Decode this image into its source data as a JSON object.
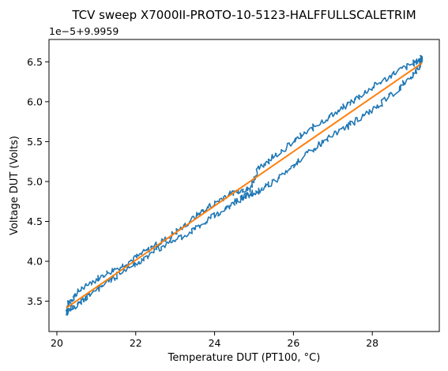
{
  "chart_data": {
    "type": "line",
    "title": "TCV sweep X7000II-PROTO-10-5123-HALFFULLSCALETRIM",
    "xlabel": "Temperature DUT (PT100, °C)",
    "ylabel": "Voltage DUT (Volts)",
    "y_offset_text": "1e−5+9.9959",
    "xlim": [
      19.8,
      29.7
    ],
    "ylim": [
      3.12,
      6.78
    ],
    "x_ticks": [
      20,
      22,
      24,
      26,
      28
    ],
    "x_tick_labels": [
      "20",
      "22",
      "24",
      "26",
      "28"
    ],
    "y_ticks": [
      3.5,
      4.0,
      4.5,
      5.0,
      5.5,
      6.0,
      6.5
    ],
    "y_tick_labels": [
      "3.5",
      "4.0",
      "4.5",
      "5.0",
      "5.5",
      "6.0",
      "6.5"
    ],
    "grid": false,
    "series": [
      {
        "color": "#1f77b4",
        "style": "noisy-hysteresis-loop",
        "x": [
          20.25,
          20.3,
          20.5,
          20.8,
          21.2,
          21.6,
          22.0,
          22.4,
          22.8,
          23.2,
          23.6,
          24.0,
          24.4,
          24.7,
          24.9,
          25.1,
          25.4,
          25.8,
          26.2,
          26.6,
          27.0,
          27.4,
          27.8,
          28.2,
          28.6,
          29.0,
          29.2,
          29.25,
          29.2,
          29.0,
          28.6,
          28.2,
          27.8,
          27.4,
          27.0,
          26.6,
          26.2,
          25.8,
          25.4,
          25.1,
          24.9,
          24.7,
          24.4,
          24.0,
          23.6,
          23.2,
          22.8,
          22.4,
          22.0,
          21.6,
          21.2,
          20.8,
          20.5,
          20.3,
          20.25
        ],
        "y": [
          3.35,
          3.48,
          3.6,
          3.72,
          3.83,
          3.93,
          4.05,
          4.17,
          4.29,
          4.43,
          4.6,
          4.73,
          4.85,
          4.9,
          4.9,
          5.15,
          5.28,
          5.42,
          5.57,
          5.71,
          5.84,
          5.97,
          6.11,
          6.24,
          6.37,
          6.47,
          6.52,
          6.55,
          6.45,
          6.32,
          6.13,
          5.97,
          5.83,
          5.7,
          5.58,
          5.44,
          5.28,
          5.1,
          4.97,
          4.88,
          4.84,
          4.8,
          4.7,
          4.57,
          4.44,
          4.31,
          4.22,
          4.1,
          3.97,
          3.85,
          3.7,
          3.57,
          3.45,
          3.38,
          3.35
        ]
      },
      {
        "color": "#ff7f0e",
        "style": "straight-fit",
        "x": [
          20.25,
          29.25
        ],
        "y": [
          3.42,
          6.48
        ]
      }
    ]
  }
}
